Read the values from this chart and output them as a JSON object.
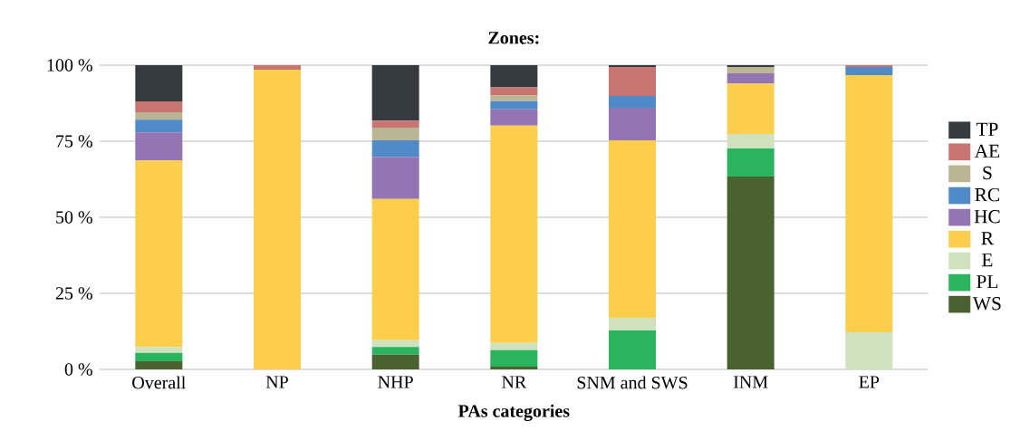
{
  "chart_data": {
    "type": "bar",
    "stacked": true,
    "title": "Zones:",
    "xlabel": "PAs categories",
    "categories": [
      "Overall",
      "NP",
      "NHP",
      "NR",
      "SNM and SWS",
      "INM",
      "EP"
    ],
    "series": [
      {
        "name": "WS",
        "color": "#4a6130",
        "values": [
          2.7,
          0,
          4.8,
          0.9,
          0,
          63.4,
          0
        ]
      },
      {
        "name": "PL",
        "color": "#2bb45e",
        "values": [
          2.7,
          0,
          2.6,
          5.4,
          12.8,
          9.2,
          0
        ]
      },
      {
        "name": "E",
        "color": "#cfe2bd",
        "values": [
          2.0,
          0,
          2.2,
          2.4,
          4.2,
          4.8,
          12.2
        ]
      },
      {
        "name": "R",
        "color": "#fdce4b",
        "values": [
          61.3,
          98.5,
          46.4,
          71.4,
          58.3,
          16.6,
          84.5
        ]
      },
      {
        "name": "HC",
        "color": "#9375b4",
        "values": [
          9.2,
          0,
          13.9,
          5.4,
          10.7,
          3.3,
          0
        ]
      },
      {
        "name": "RC",
        "color": "#508bc9",
        "values": [
          4.2,
          0,
          5.4,
          2.7,
          3.9,
          0,
          2.7
        ]
      },
      {
        "name": "S",
        "color": "#bab593",
        "values": [
          2.4,
          0,
          4.2,
          1.8,
          0,
          2.1,
          0
        ]
      },
      {
        "name": "AE",
        "color": "#c87470",
        "values": [
          3.6,
          1.5,
          2.3,
          2.7,
          9.5,
          0,
          0.6
        ]
      },
      {
        "name": "TP",
        "color": "#353a3e",
        "values": [
          11.9,
          0,
          18.2,
          7.4,
          0.6,
          0.6,
          0
        ]
      }
    ],
    "ylim": [
      0,
      100
    ],
    "yticks": [
      {
        "value": 0,
        "label": "0 %"
      },
      {
        "value": 25,
        "label": "25 %"
      },
      {
        "value": 50,
        "label": "50 %"
      },
      {
        "value": 75,
        "label": "75 %"
      },
      {
        "value": 100,
        "label": "100 %"
      }
    ],
    "grid": "y",
    "legend": "right"
  }
}
